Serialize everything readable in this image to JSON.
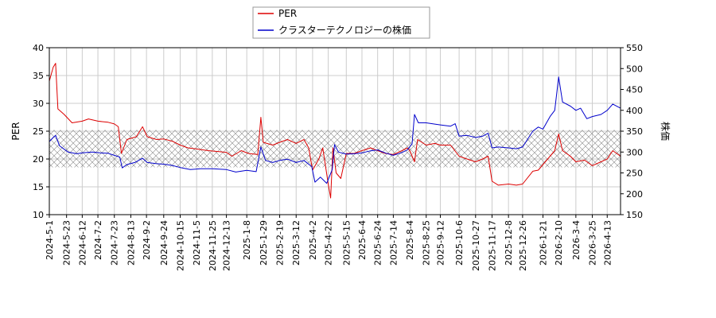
{
  "chart_data": {
    "type": "line",
    "title": "",
    "xlabel": "",
    "ylabel_left": "PER",
    "ylabel_right": "株価",
    "ylim_left": [
      10,
      40
    ],
    "ylim_right": [
      150,
      550
    ],
    "yticks_left": [
      "10",
      "15",
      "20",
      "25",
      "30",
      "35",
      "40"
    ],
    "yticks_right": [
      "150",
      "200",
      "250",
      "300",
      "350",
      "400",
      "450",
      "500",
      "550"
    ],
    "grid": true,
    "legend_position": "top-center",
    "shaded_band": {
      "axis": "left",
      "range": [
        18.5,
        25.2
      ],
      "pattern": "crosshatch"
    },
    "x_start": "2024-05-01",
    "x_end": "2026-04-30",
    "xticks": [
      "2024-5-1",
      "2024-5-23",
      "2024-6-12",
      "2024-7-2",
      "2024-7-23",
      "2024-8-13",
      "2024-9-2",
      "2024-9-24",
      "2024-10-15",
      "2024-11-5",
      "2024-11-25",
      "2024-12-13",
      "2025-1-8",
      "2025-1-29",
      "2025-2-19",
      "2025-3-12",
      "2025-4-2",
      "2025-4-22",
      "2025-5-15",
      "2025-6-4",
      "2025-6-24",
      "2025-7-14",
      "2025-8-4",
      "2025-8-25",
      "2025-9-12",
      "2025-10-6",
      "2025-10-27",
      "2025-11-17",
      "2025-12-8",
      "2025-12-26",
      "2026-1-21",
      "2026-2-10",
      "2026-3-4",
      "2026-3-25",
      "2026-4-13"
    ],
    "series": [
      {
        "name": "PER",
        "color": "#dd0000",
        "axis": "left",
        "points": [
          [
            "2024-05-01",
            34
          ],
          [
            "2024-05-06",
            36.5
          ],
          [
            "2024-05-09",
            37.2
          ],
          [
            "2024-05-12",
            29
          ],
          [
            "2024-05-20",
            28
          ],
          [
            "2024-05-30",
            26.5
          ],
          [
            "2024-06-12",
            26.8
          ],
          [
            "2024-06-20",
            27.2
          ],
          [
            "2024-07-02",
            26.8
          ],
          [
            "2024-07-15",
            26.6
          ],
          [
            "2024-07-23",
            26.3
          ],
          [
            "2024-07-28",
            25.8
          ],
          [
            "2024-08-01",
            21
          ],
          [
            "2024-08-08",
            23.5
          ],
          [
            "2024-08-20",
            24
          ],
          [
            "2024-08-28",
            25.8
          ],
          [
            "2024-09-03",
            24
          ],
          [
            "2024-09-15",
            23.5
          ],
          [
            "2024-09-24",
            23.6
          ],
          [
            "2024-10-05",
            23.2
          ],
          [
            "2024-10-15",
            22.5
          ],
          [
            "2024-10-25",
            22
          ],
          [
            "2024-11-05",
            21.8
          ],
          [
            "2024-11-20",
            21.5
          ],
          [
            "2024-12-05",
            21.3
          ],
          [
            "2024-12-13",
            21.2
          ],
          [
            "2024-12-20",
            20.5
          ],
          [
            "2025-01-01",
            21.5
          ],
          [
            "2025-01-10",
            21
          ],
          [
            "2025-01-22",
            20.8
          ],
          [
            "2025-01-26",
            27.5
          ],
          [
            "2025-01-29",
            23
          ],
          [
            "2025-02-10",
            22.5
          ],
          [
            "2025-02-19",
            23
          ],
          [
            "2025-03-01",
            23.5
          ],
          [
            "2025-03-12",
            22.8
          ],
          [
            "2025-03-22",
            23.5
          ],
          [
            "2025-03-28",
            22
          ],
          [
            "2025-04-02",
            18
          ],
          [
            "2025-04-10",
            20
          ],
          [
            "2025-04-15",
            22
          ],
          [
            "2025-04-22",
            15.5
          ],
          [
            "2025-04-25",
            13
          ],
          [
            "2025-04-28",
            22
          ],
          [
            "2025-05-02",
            17.5
          ],
          [
            "2025-05-08",
            16.5
          ],
          [
            "2025-05-15",
            21
          ],
          [
            "2025-05-25",
            21
          ],
          [
            "2025-06-04",
            21.5
          ],
          [
            "2025-06-15",
            22
          ],
          [
            "2025-06-24",
            21.5
          ],
          [
            "2025-07-04",
            21
          ],
          [
            "2025-07-14",
            20.8
          ],
          [
            "2025-07-25",
            21.5
          ],
          [
            "2025-08-01",
            22
          ],
          [
            "2025-08-04",
            21.5
          ],
          [
            "2025-08-10",
            19.5
          ],
          [
            "2025-08-14",
            23.5
          ],
          [
            "2025-08-25",
            22.5
          ],
          [
            "2025-09-05",
            22.8
          ],
          [
            "2025-09-12",
            22.5
          ],
          [
            "2025-09-25",
            22.5
          ],
          [
            "2025-10-06",
            20.5
          ],
          [
            "2025-10-16",
            20
          ],
          [
            "2025-10-27",
            19.5
          ],
          [
            "2025-11-05",
            20
          ],
          [
            "2025-11-12",
            20.5
          ],
          [
            "2025-11-17",
            16
          ],
          [
            "2025-11-25",
            15.3
          ],
          [
            "2025-12-08",
            15.5
          ],
          [
            "2025-12-18",
            15.3
          ],
          [
            "2025-12-26",
            15.5
          ],
          [
            "2026-01-08",
            17.8
          ],
          [
            "2026-01-15",
            18
          ],
          [
            "2026-01-21",
            19
          ],
          [
            "2026-01-30",
            20.5
          ],
          [
            "2026-02-05",
            21.5
          ],
          [
            "2026-02-10",
            24.5
          ],
          [
            "2026-02-15",
            21.5
          ],
          [
            "2026-02-25",
            20.5
          ],
          [
            "2026-03-04",
            19.5
          ],
          [
            "2026-03-15",
            19.8
          ],
          [
            "2026-03-25",
            18.8
          ],
          [
            "2026-04-05",
            19.5
          ],
          [
            "2026-04-13",
            20
          ],
          [
            "2026-04-20",
            21.5
          ],
          [
            "2026-04-30",
            20.5
          ]
        ]
      },
      {
        "name": "クラスターテクノロジーの株価",
        "color": "#0000cc",
        "axis": "right",
        "points": [
          [
            "2024-05-01",
            325
          ],
          [
            "2024-05-06",
            335
          ],
          [
            "2024-05-09",
            340
          ],
          [
            "2024-05-14",
            315
          ],
          [
            "2024-05-25",
            300
          ],
          [
            "2024-06-05",
            296
          ],
          [
            "2024-06-12",
            298
          ],
          [
            "2024-06-25",
            300
          ],
          [
            "2024-07-05",
            298
          ],
          [
            "2024-07-15",
            297
          ],
          [
            "2024-07-23",
            292
          ],
          [
            "2024-07-30",
            288
          ],
          [
            "2024-08-02",
            262
          ],
          [
            "2024-08-08",
            270
          ],
          [
            "2024-08-18",
            275
          ],
          [
            "2024-08-28",
            285
          ],
          [
            "2024-09-03",
            275
          ],
          [
            "2024-09-15",
            272
          ],
          [
            "2024-09-24",
            271
          ],
          [
            "2024-10-05",
            268
          ],
          [
            "2024-10-15",
            263
          ],
          [
            "2024-10-28",
            258
          ],
          [
            "2024-11-10",
            260
          ],
          [
            "2024-11-25",
            260
          ],
          [
            "2024-12-13",
            258
          ],
          [
            "2024-12-25",
            252
          ],
          [
            "2025-01-08",
            256
          ],
          [
            "2025-01-20",
            253
          ],
          [
            "2025-01-26",
            312
          ],
          [
            "2025-02-01",
            280
          ],
          [
            "2025-02-10",
            275
          ],
          [
            "2025-02-19",
            280
          ],
          [
            "2025-03-01",
            283
          ],
          [
            "2025-03-12",
            275
          ],
          [
            "2025-03-22",
            280
          ],
          [
            "2025-04-01",
            265
          ],
          [
            "2025-04-05",
            228
          ],
          [
            "2025-04-12",
            240
          ],
          [
            "2025-04-20",
            225
          ],
          [
            "2025-04-27",
            258
          ],
          [
            "2025-04-30",
            318
          ],
          [
            "2025-05-05",
            300
          ],
          [
            "2025-05-15",
            295
          ],
          [
            "2025-05-25",
            296
          ],
          [
            "2025-06-04",
            298
          ],
          [
            "2025-06-15",
            303
          ],
          [
            "2025-06-24",
            305
          ],
          [
            "2025-07-05",
            297
          ],
          [
            "2025-07-14",
            292
          ],
          [
            "2025-07-25",
            299
          ],
          [
            "2025-08-01",
            305
          ],
          [
            "2025-08-07",
            320
          ],
          [
            "2025-08-10",
            390
          ],
          [
            "2025-08-15",
            370
          ],
          [
            "2025-08-25",
            370
          ],
          [
            "2025-09-05",
            367
          ],
          [
            "2025-09-12",
            365
          ],
          [
            "2025-09-25",
            362
          ],
          [
            "2025-10-01",
            368
          ],
          [
            "2025-10-06",
            338
          ],
          [
            "2025-10-16",
            340
          ],
          [
            "2025-10-27",
            335
          ],
          [
            "2025-11-05",
            338
          ],
          [
            "2025-11-12",
            345
          ],
          [
            "2025-11-17",
            310
          ],
          [
            "2025-11-25",
            312
          ],
          [
            "2025-12-08",
            310
          ],
          [
            "2025-12-18",
            308
          ],
          [
            "2025-12-26",
            312
          ],
          [
            "2026-01-08",
            350
          ],
          [
            "2026-01-15",
            360
          ],
          [
            "2026-01-21",
            355
          ],
          [
            "2026-01-30",
            385
          ],
          [
            "2026-02-05",
            400
          ],
          [
            "2026-02-10",
            480
          ],
          [
            "2026-02-15",
            420
          ],
          [
            "2026-02-25",
            410
          ],
          [
            "2026-03-04",
            400
          ],
          [
            "2026-03-10",
            405
          ],
          [
            "2026-03-18",
            380
          ],
          [
            "2026-03-25",
            385
          ],
          [
            "2026-04-05",
            390
          ],
          [
            "2026-04-13",
            400
          ],
          [
            "2026-04-20",
            415
          ],
          [
            "2026-04-30",
            405
          ]
        ]
      }
    ]
  }
}
